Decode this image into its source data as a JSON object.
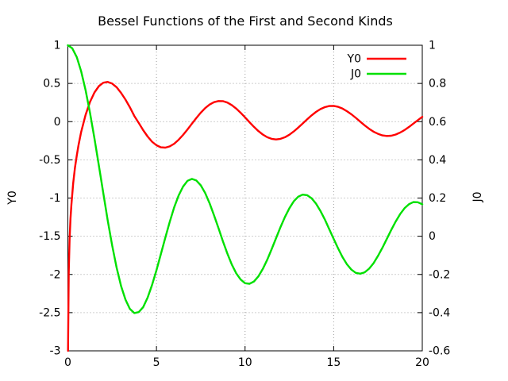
{
  "title": "Bessel Functions of the First and Second Kinds",
  "axes": {
    "x": {
      "tick_labels": [
        "0",
        "5",
        "10",
        "15",
        "20"
      ],
      "range": [
        0,
        20
      ]
    },
    "y_left": {
      "label": "Y0",
      "tick_labels": [
        "1",
        "0.5",
        "0",
        "-0.5",
        "-1",
        "-1.5",
        "-2",
        "-2.5",
        "-3"
      ],
      "range": [
        -3,
        1
      ]
    },
    "y_right": {
      "label": "J0",
      "tick_labels": [
        "1",
        "0.8",
        "0.6",
        "0.4",
        "0.2",
        "0",
        "-0.2",
        "-0.4",
        "-0.6"
      ],
      "range": [
        -0.6,
        1
      ]
    }
  },
  "legend": {
    "position": "top-right",
    "entries": [
      {
        "label": "Y0",
        "color": "#ff0000"
      },
      {
        "label": "J0",
        "color": "#00e000"
      }
    ]
  },
  "colors": {
    "y0_line": "#ff0000",
    "j0_line": "#00e000",
    "grid": "#9e9e9e",
    "border": "#000000",
    "text": "#000000",
    "background": "#ffffff"
  },
  "chart_data": {
    "type": "line",
    "title": "Bessel Functions of the First and Second Kinds",
    "xlabel": "",
    "ylabel_left": "Y0",
    "ylabel_right": "J0",
    "xlim": [
      0,
      20
    ],
    "ylim_left": [
      -3,
      1
    ],
    "ylim_right": [
      -0.6,
      1
    ],
    "grid": true,
    "legend_position": "top-right",
    "series": [
      {
        "name": "Y0",
        "axis": "left",
        "color": "#ff0000",
        "x": [
          0.01,
          0.05,
          0.1,
          0.15,
          0.2,
          0.3,
          0.4,
          0.5,
          0.6,
          0.75,
          1,
          1.25,
          1.5,
          1.75,
          2,
          2.25,
          2.5,
          2.75,
          3,
          3.25,
          3.5,
          3.75,
          4,
          4.25,
          4.5,
          4.75,
          5,
          5.25,
          5.5,
          5.75,
          6,
          6.25,
          6.5,
          6.75,
          7,
          7.25,
          7.5,
          7.75,
          8,
          8.25,
          8.5,
          8.75,
          9,
          9.25,
          9.5,
          9.75,
          10,
          10.25,
          10.5,
          10.75,
          11,
          11.25,
          11.5,
          11.75,
          12,
          12.25,
          12.5,
          12.75,
          13,
          13.25,
          13.5,
          13.75,
          14,
          14.25,
          14.5,
          14.75,
          15,
          15.25,
          15.5,
          15.75,
          16,
          16.25,
          16.5,
          16.75,
          17,
          17.25,
          17.5,
          17.75,
          18,
          18.25,
          18.5,
          18.75,
          19,
          19.25,
          19.5,
          19.75,
          20
        ],
        "y": [
          -3,
          -1.979,
          -1.534,
          -1.271,
          -1.081,
          -0.807,
          -0.606,
          -0.445,
          -0.309,
          -0.137,
          0.088,
          0.258,
          0.382,
          0.465,
          0.51,
          0.52,
          0.498,
          0.45,
          0.377,
          0.288,
          0.189,
          0.074,
          -0.017,
          -0.112,
          -0.195,
          -0.262,
          -0.309,
          -0.336,
          -0.34,
          -0.324,
          -0.289,
          -0.237,
          -0.174,
          -0.102,
          -0.026,
          0.048,
          0.117,
          0.177,
          0.224,
          0.255,
          0.27,
          0.269,
          0.25,
          0.217,
          0.171,
          0.116,
          0.056,
          -0.007,
          -0.068,
          -0.123,
          -0.169,
          -0.204,
          -0.225,
          -0.233,
          -0.225,
          -0.204,
          -0.171,
          -0.128,
          -0.078,
          -0.024,
          0.03,
          0.082,
          0.127,
          0.164,
          0.19,
          0.204,
          0.206,
          0.194,
          0.171,
          0.137,
          0.096,
          0.049,
          0,
          -0.048,
          -0.093,
          -0.131,
          -0.16,
          -0.18,
          -0.188,
          -0.184,
          -0.169,
          -0.143,
          -0.11,
          -0.069,
          -0.025,
          0.019,
          0.063
        ]
      },
      {
        "name": "J0",
        "axis": "right",
        "color": "#00e000",
        "x": [
          0,
          0.25,
          0.5,
          0.75,
          1,
          1.25,
          1.5,
          1.75,
          2,
          2.25,
          2.5,
          2.75,
          3,
          3.25,
          3.5,
          3.75,
          4,
          4.25,
          4.5,
          4.75,
          5,
          5.25,
          5.5,
          5.75,
          6,
          6.25,
          6.5,
          6.75,
          7,
          7.25,
          7.5,
          7.75,
          8,
          8.25,
          8.5,
          8.75,
          9,
          9.25,
          9.5,
          9.75,
          10,
          10.25,
          10.5,
          10.75,
          11,
          11.25,
          11.5,
          11.75,
          12,
          12.25,
          12.5,
          12.75,
          13,
          13.25,
          13.5,
          13.75,
          14,
          14.25,
          14.5,
          14.75,
          15,
          15.25,
          15.5,
          15.75,
          16,
          16.25,
          16.5,
          16.75,
          17,
          17.25,
          17.5,
          17.75,
          18,
          18.25,
          18.5,
          18.75,
          19,
          19.25,
          19.5,
          19.75,
          20
        ],
        "y": [
          1,
          0.984,
          0.938,
          0.864,
          0.765,
          0.646,
          0.512,
          0.369,
          0.224,
          0.083,
          -0.048,
          -0.164,
          -0.26,
          -0.332,
          -0.38,
          -0.402,
          -0.397,
          -0.371,
          -0.321,
          -0.256,
          -0.178,
          -0.093,
          -0.007,
          0.076,
          0.151,
          0.213,
          0.26,
          0.29,
          0.3,
          0.292,
          0.267,
          0.226,
          0.172,
          0.109,
          0.042,
          -0.026,
          -0.09,
          -0.148,
          -0.194,
          -0.227,
          -0.246,
          -0.249,
          -0.237,
          -0.21,
          -0.171,
          -0.123,
          -0.068,
          -0.01,
          0.048,
          0.101,
          0.147,
          0.183,
          0.207,
          0.218,
          0.215,
          0.199,
          0.171,
          0.133,
          0.088,
          0.037,
          -0.014,
          -0.064,
          -0.109,
          -0.147,
          -0.175,
          -0.192,
          -0.196,
          -0.189,
          -0.17,
          -0.141,
          -0.103,
          -0.06,
          -0.013,
          0.033,
          0.077,
          0.116,
          0.147,
          0.168,
          0.179,
          0.178,
          0.167
        ]
      }
    ]
  }
}
